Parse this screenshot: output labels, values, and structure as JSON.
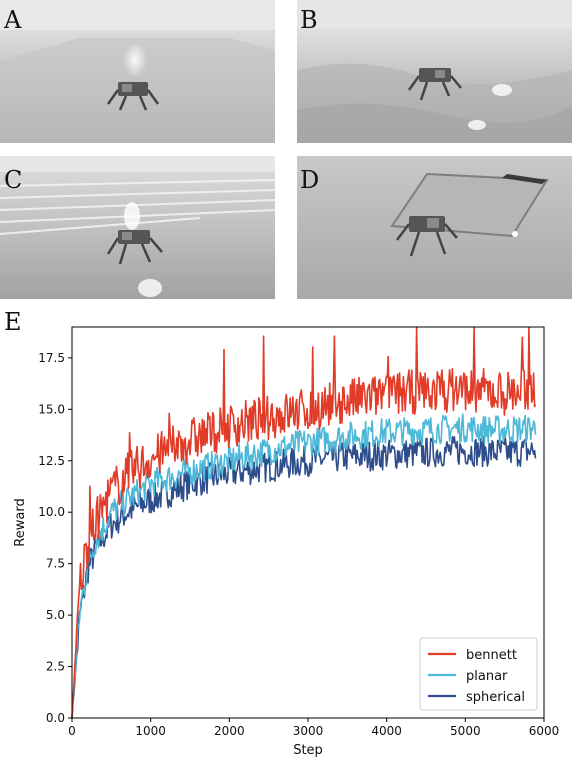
{
  "panels": [
    {
      "id": "A",
      "letter": "A",
      "scene": "flat-terrain"
    },
    {
      "id": "B",
      "letter": "B",
      "scene": "rough-terrain"
    },
    {
      "id": "C",
      "letter": "C",
      "scene": "stairs-terrain"
    },
    {
      "id": "D",
      "letter": "D",
      "scene": "pit-terrain"
    }
  ],
  "chart_letter": "E",
  "colors": {
    "bennett": "#e03c28",
    "planar": "#4db8d8",
    "spherical": "#2e4d8c",
    "sky": "#e6e6e6",
    "ground": "#b4b4b4"
  },
  "chart_data": {
    "type": "line",
    "title": "",
    "xlabel": "Step",
    "ylabel": "Reward",
    "xlim": [
      0,
      6000
    ],
    "ylim": [
      0,
      19.0
    ],
    "xticks": [
      "0",
      "1000",
      "2000",
      "3000",
      "4000",
      "5000",
      "6000"
    ],
    "yticks": [
      "0.0",
      "2.5",
      "5.0",
      "7.5",
      "10.0",
      "12.5",
      "15.0",
      "17.5"
    ],
    "legend_position": "lower-right",
    "series": [
      {
        "name": "bennett",
        "x": [
          0,
          100,
          200,
          300,
          500,
          700,
          1000,
          1500,
          2000,
          2500,
          3000,
          3500,
          4000,
          4500,
          5000,
          5500,
          5900
        ],
        "values": [
          0,
          6.5,
          8.5,
          9.5,
          11.0,
          11.8,
          12.6,
          13.5,
          14.2,
          14.6,
          15.0,
          15.4,
          15.7,
          15.9,
          16.0,
          15.8,
          16.0
        ]
      },
      {
        "name": "planar",
        "x": [
          0,
          100,
          200,
          300,
          500,
          700,
          1000,
          1500,
          2000,
          2500,
          3000,
          3500,
          4000,
          4500,
          5000,
          5500,
          5900
        ],
        "values": [
          0,
          5.2,
          7.5,
          8.6,
          10.0,
          10.6,
          11.4,
          12.0,
          12.5,
          13.0,
          13.4,
          13.7,
          13.9,
          14.0,
          14.1,
          14.0,
          14.1
        ]
      },
      {
        "name": "spherical",
        "x": [
          0,
          100,
          200,
          300,
          500,
          700,
          1000,
          1500,
          2000,
          2500,
          3000,
          3500,
          4000,
          4500,
          5000,
          5500,
          5900
        ],
        "values": [
          0,
          5.0,
          7.2,
          8.2,
          9.4,
          10.0,
          10.6,
          11.4,
          11.9,
          12.2,
          12.5,
          12.7,
          12.8,
          12.9,
          13.0,
          12.9,
          13.0
        ]
      }
    ]
  }
}
